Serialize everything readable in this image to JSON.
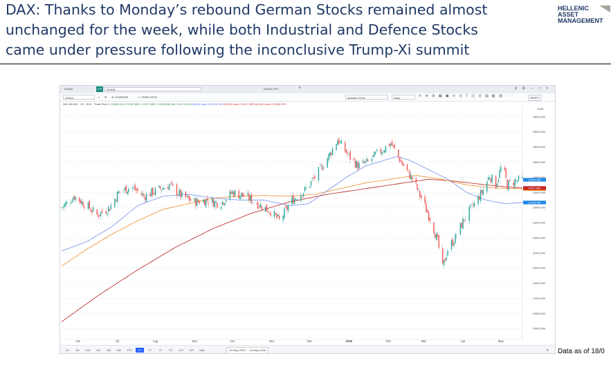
{
  "headline": {
    "line1": "DAX: Thanks to Monday’s rebound German Stocks remained almost",
    "line2": "unchanged for the week, while both Industrial and Defence Stocks",
    "line3": "came under pressure  following the inconclusive Trump-Xi summit"
  },
  "logo": {
    "line1": "HELLENIC",
    "line2": "ASSET",
    "line3": "MANAGEMENT"
  },
  "footnote": "Data as of 18/0",
  "terminal": {
    "tab_ticker": "GDAXI",
    "tab_active": "CHT",
    "tab_input": "GDAXI",
    "tab_second": "GDAXI CHT",
    "tab_plus": "+",
    "window_controls": "⊘ ⧉ — □ ✕",
    "toolbar": {
      "symbol": "GDAXI",
      "compare": "COMPARE",
      "templates": "TEMPLATES",
      "price_mode": "Absolute Price",
      "interval": "Daily",
      "icons": "⟲ ⊕ ⊞ ▦ ▣ ⊙ ⊡ T ◫ ⊟ ▤ ◧ ▥ ⫶ ⋮",
      "reset": "RESET"
    },
    "infoline": {
      "ticker": "DAX 88 AUK · 1D · GDX · Trade Price",
      "ohlc": "O 23693.193  H 24387.889  L 23767.668  C 24335.358  364.743 (+1.61%)",
      "ma50": "MA 50 close 0  23733.764",
      "ma200": "MA 200 close 0  24117.893",
      "ma100": "MA 100 close 0  24094.575"
    },
    "range_buttons": [
      "1D",
      "5D",
      "10D",
      "1M",
      "3M",
      "6M",
      "YTD",
      "1Y",
      "2Y",
      "3Y",
      "5Y",
      "10Y",
      "20Y",
      "Max"
    ],
    "range_active": "1Y",
    "range_dates": "19-May-2025 → 18-May-2026",
    "gear_icon_glyph": "⚙"
  },
  "chart_data": {
    "type": "candlestick",
    "title": "",
    "currency_label": "EUR",
    "y_ticks": [
      20400,
      20800,
      21200,
      21600,
      22000,
      22400,
      22800,
      23200,
      23600,
      24000,
      24400,
      24800,
      25200,
      25600,
      26000
    ],
    "y_tick_labels": [
      "20400.000",
      "20800.000",
      "21200.000",
      "21600.000",
      "22000.000",
      "22400.000",
      "22800.000",
      "23200.000",
      "23600.000",
      "24000.000",
      "24400.000",
      "24800.000",
      "25200.000",
      "25600.000",
      "26000.000"
    ],
    "ylim": [
      20150,
      26200
    ],
    "x_labels": [
      "Jun",
      "Jul",
      "Aug",
      "Sep",
      "Oct",
      "Nov",
      "Dec",
      "2026",
      "Feb",
      "Mar",
      "Apr",
      "May"
    ],
    "x_label_days": [
      13,
      44,
      74,
      105,
      135,
      166,
      196,
      227,
      258,
      286,
      317,
      347
    ],
    "n_days": 365,
    "price_waypoints": [
      [
        0,
        23600
      ],
      [
        10,
        23900
      ],
      [
        20,
        23650
      ],
      [
        28,
        23400
      ],
      [
        38,
        23600
      ],
      [
        45,
        24000
      ],
      [
        55,
        24150
      ],
      [
        65,
        23900
      ],
      [
        75,
        24050
      ],
      [
        85,
        24200
      ],
      [
        95,
        23900
      ],
      [
        105,
        23750
      ],
      [
        115,
        23800
      ],
      [
        125,
        23700
      ],
      [
        135,
        24000
      ],
      [
        145,
        23900
      ],
      [
        155,
        23700
      ],
      [
        165,
        23500
      ],
      [
        172,
        23250
      ],
      [
        182,
        23800
      ],
      [
        192,
        24050
      ],
      [
        200,
        24400
      ],
      [
        210,
        24900
      ],
      [
        218,
        25400
      ],
      [
        226,
        25000
      ],
      [
        234,
        24700
      ],
      [
        242,
        24800
      ],
      [
        250,
        25050
      ],
      [
        260,
        25300
      ],
      [
        270,
        24700
      ],
      [
        278,
        24300
      ],
      [
        286,
        23700
      ],
      [
        292,
        23250
      ],
      [
        297,
        22700
      ],
      [
        301,
        22000
      ],
      [
        305,
        22500
      ],
      [
        311,
        22800
      ],
      [
        318,
        23300
      ],
      [
        326,
        23700
      ],
      [
        332,
        24000
      ],
      [
        338,
        24450
      ],
      [
        343,
        24200
      ],
      [
        348,
        24750
      ],
      [
        352,
        24200
      ],
      [
        358,
        24300
      ],
      [
        364,
        24335
      ]
    ],
    "ma_50": [
      [
        0,
        22450
      ],
      [
        20,
        22700
      ],
      [
        40,
        23100
      ],
      [
        60,
        23650
      ],
      [
        80,
        23900
      ],
      [
        100,
        23950
      ],
      [
        120,
        23850
      ],
      [
        140,
        23800
      ],
      [
        160,
        23800
      ],
      [
        180,
        23650
      ],
      [
        195,
        23700
      ],
      [
        210,
        24050
      ],
      [
        225,
        24400
      ],
      [
        240,
        24700
      ],
      [
        255,
        24850
      ],
      [
        265,
        24950
      ],
      [
        275,
        24850
      ],
      [
        290,
        24600
      ],
      [
        305,
        24350
      ],
      [
        320,
        24000
      ],
      [
        335,
        23800
      ],
      [
        350,
        23700
      ],
      [
        364,
        23734
      ]
    ],
    "ma_100": [
      [
        0,
        22050
      ],
      [
        20,
        22500
      ],
      [
        40,
        22900
      ],
      [
        60,
        23250
      ],
      [
        80,
        23550
      ],
      [
        100,
        23700
      ],
      [
        120,
        23850
      ],
      [
        140,
        23900
      ],
      [
        160,
        23920
      ],
      [
        180,
        23900
      ],
      [
        200,
        23950
      ],
      [
        220,
        24100
      ],
      [
        240,
        24250
      ],
      [
        260,
        24350
      ],
      [
        280,
        24450
      ],
      [
        300,
        24350
      ],
      [
        320,
        24200
      ],
      [
        340,
        24120
      ],
      [
        364,
        24095
      ]
    ],
    "ma_200": [
      [
        0,
        20580
      ],
      [
        30,
        21300
      ],
      [
        60,
        21950
      ],
      [
        90,
        22550
      ],
      [
        120,
        23050
      ],
      [
        150,
        23450
      ],
      [
        180,
        23750
      ],
      [
        210,
        23950
      ],
      [
        240,
        24100
      ],
      [
        270,
        24250
      ],
      [
        290,
        24350
      ],
      [
        310,
        24300
      ],
      [
        330,
        24220
      ],
      [
        350,
        24150
      ],
      [
        364,
        24118
      ]
    ],
    "last_values": [
      {
        "label": "24335.358",
        "value": 24335.358,
        "color": "#1e88e5"
      },
      {
        "label": "24094.575",
        "value": 24094.575,
        "color": "#ef6c00"
      },
      {
        "label": "24117.893",
        "value": 24117.893,
        "color": "#c62828"
      },
      {
        "label": "23733.764",
        "value": 23733.764,
        "color": "#1e88e5"
      }
    ],
    "colors": {
      "up": "#26a69a",
      "down": "#ef5350",
      "ma_50": "#6f8de8",
      "ma_100": "#f08a24",
      "ma_200": "#b71c1c"
    }
  }
}
